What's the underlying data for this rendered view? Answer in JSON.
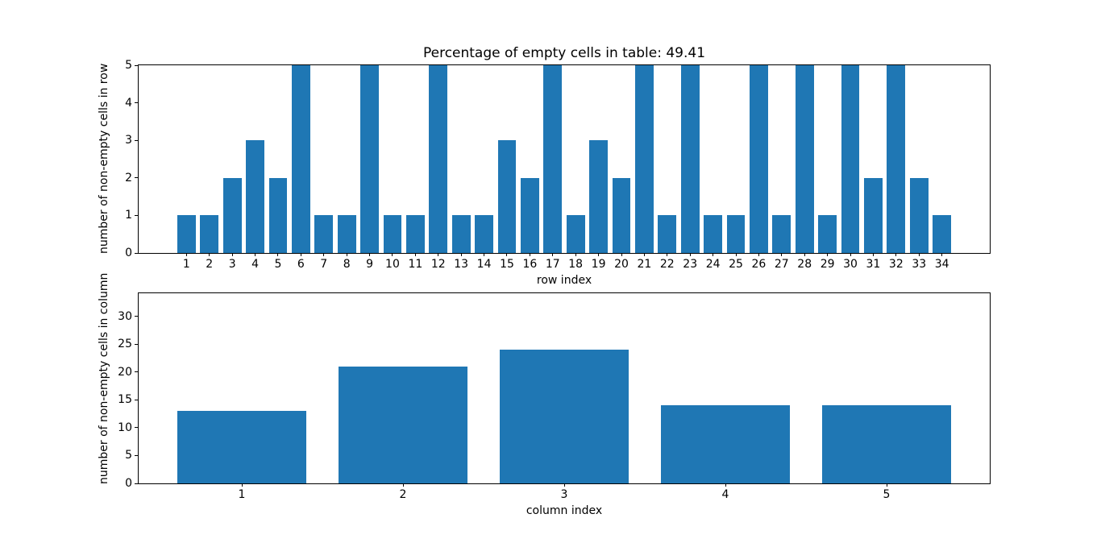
{
  "figure": {
    "background": "#ffffff",
    "text_color": "#000000",
    "spine_color": "#000000"
  },
  "chart_data": [
    {
      "type": "bar",
      "title": "Percentage of empty cells in table: 49.41",
      "xlabel": "row index",
      "ylabel": "number of non-empty cells in row",
      "categories": [
        1,
        2,
        3,
        4,
        5,
        6,
        7,
        8,
        9,
        10,
        11,
        12,
        13,
        14,
        15,
        16,
        17,
        18,
        19,
        20,
        21,
        22,
        23,
        24,
        25,
        26,
        27,
        28,
        29,
        30,
        31,
        32,
        33,
        34
      ],
      "values": [
        1,
        1,
        2,
        3,
        2,
        5,
        1,
        1,
        5,
        1,
        1,
        5,
        1,
        1,
        3,
        2,
        5,
        1,
        3,
        2,
        5,
        1,
        5,
        1,
        1,
        5,
        1,
        5,
        1,
        5,
        2,
        5,
        2,
        1
      ],
      "ylim": [
        0,
        5
      ],
      "yticks": [
        0,
        1,
        2,
        3,
        4,
        5
      ],
      "xlim": [
        -1.09,
        36.09
      ],
      "bar_width": 0.8,
      "bar_color": "#1f77b4",
      "grid": false,
      "legend": null
    },
    {
      "type": "bar",
      "title": "",
      "xlabel": "column index",
      "ylabel": "number of non-empty cells in column",
      "categories": [
        1,
        2,
        3,
        4,
        5
      ],
      "values": [
        13,
        21,
        24,
        14,
        14
      ],
      "ylim": [
        0,
        34.2
      ],
      "yticks": [
        0,
        5,
        10,
        15,
        20,
        25,
        30
      ],
      "xlim": [
        0.36,
        5.64
      ],
      "bar_width": 0.8,
      "bar_color": "#1f77b4",
      "grid": false,
      "legend": null
    }
  ]
}
